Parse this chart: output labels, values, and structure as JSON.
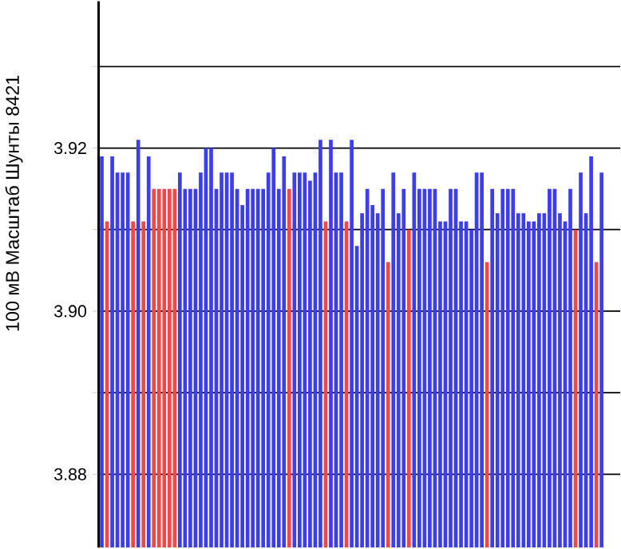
{
  "chart_data": {
    "type": "bar",
    "ylabel": "100 мВ Масштаб  Шунты 8421",
    "categories": [
      null,
      null,
      null,
      null,
      null,
      null,
      null,
      null,
      null,
      null,
      null,
      null,
      null,
      null,
      null,
      null,
      null,
      null,
      null,
      null,
      null,
      null,
      null,
      null,
      null,
      null,
      null,
      null,
      null,
      null,
      null,
      null,
      null,
      null,
      null,
      null,
      null,
      null,
      null,
      null,
      null,
      null,
      null,
      null,
      null,
      null,
      null,
      null,
      null,
      null,
      null,
      null,
      null,
      null,
      null,
      null,
      null,
      null,
      null,
      null,
      null,
      null,
      null,
      null,
      null,
      null,
      null,
      null,
      null,
      null,
      null,
      null,
      null,
      null,
      null,
      null,
      null,
      null,
      null,
      null,
      null,
      null,
      null,
      null,
      null,
      null,
      null,
      null,
      null,
      null,
      null,
      null,
      null,
      null,
      null,
      null,
      null
    ],
    "values": [
      3.919,
      3.911,
      3.919,
      3.917,
      3.917,
      3.917,
      3.911,
      3.921,
      3.911,
      3.919,
      3.915,
      3.915,
      3.915,
      3.915,
      3.915,
      3.917,
      3.915,
      3.915,
      3.915,
      3.917,
      3.92,
      3.92,
      3.915,
      3.917,
      3.917,
      3.917,
      3.915,
      3.913,
      3.915,
      3.915,
      3.915,
      3.915,
      3.917,
      3.92,
      3.915,
      3.919,
      3.915,
      3.917,
      3.917,
      3.917,
      3.916,
      3.917,
      3.921,
      3.911,
      3.921,
      3.917,
      3.917,
      3.911,
      3.921,
      3.908,
      3.912,
      3.915,
      3.913,
      3.912,
      3.915,
      3.906,
      3.917,
      3.912,
      3.915,
      3.91,
      3.917,
      3.915,
      3.915,
      3.915,
      3.915,
      3.911,
      3.911,
      3.915,
      3.915,
      3.911,
      3.911,
      3.91,
      3.917,
      3.917,
      3.906,
      3.915,
      3.912,
      3.915,
      3.915,
      3.915,
      3.912,
      3.912,
      3.911,
      3.911,
      3.912,
      3.912,
      3.915,
      3.915,
      3.912,
      3.911,
      3.915,
      3.91,
      3.917,
      3.912,
      3.919,
      3.906,
      3.917
    ],
    "colors": [
      "#3c3cf0",
      "#f04848",
      "#3c3cf0",
      "#3c3cf0",
      "#3c3cf0",
      "#3c3cf0",
      "#f04848",
      "#3c3cf0",
      "#f04848",
      "#3c3cf0",
      "#f04848",
      "#f04848",
      "#f04848",
      "#f04848",
      "#f04848",
      "#3c3cf0",
      "#3c3cf0",
      "#3c3cf0",
      "#3c3cf0",
      "#3c3cf0",
      "#3c3cf0",
      "#3c3cf0",
      "#3c3cf0",
      "#3c3cf0",
      "#3c3cf0",
      "#3c3cf0",
      "#3c3cf0",
      "#3c3cf0",
      "#3c3cf0",
      "#3c3cf0",
      "#3c3cf0",
      "#3c3cf0",
      "#3c3cf0",
      "#3c3cf0",
      "#3c3cf0",
      "#3c3cf0",
      "#f04848",
      "#3c3cf0",
      "#3c3cf0",
      "#3c3cf0",
      "#3c3cf0",
      "#3c3cf0",
      "#3c3cf0",
      "#f04848",
      "#3c3cf0",
      "#3c3cf0",
      "#3c3cf0",
      "#f04848",
      "#3c3cf0",
      "#3c3cf0",
      "#3c3cf0",
      "#3c3cf0",
      "#3c3cf0",
      "#3c3cf0",
      "#3c3cf0",
      "#f04848",
      "#3c3cf0",
      "#3c3cf0",
      "#3c3cf0",
      "#f04848",
      "#3c3cf0",
      "#3c3cf0",
      "#3c3cf0",
      "#3c3cf0",
      "#3c3cf0",
      "#3c3cf0",
      "#3c3cf0",
      "#3c3cf0",
      "#3c3cf0",
      "#3c3cf0",
      "#3c3cf0",
      "#3c3cf0",
      "#3c3cf0",
      "#3c3cf0",
      "#f04848",
      "#3c3cf0",
      "#3c3cf0",
      "#3c3cf0",
      "#3c3cf0",
      "#3c3cf0",
      "#3c3cf0",
      "#3c3cf0",
      "#3c3cf0",
      "#3c3cf0",
      "#3c3cf0",
      "#3c3cf0",
      "#3c3cf0",
      "#3c3cf0",
      "#3c3cf0",
      "#3c3cf0",
      "#3c3cf0",
      "#f04848",
      "#3c3cf0",
      "#3c3cf0",
      "#3c3cf0",
      "#f04848",
      "#3c3cf0"
    ],
    "ylim": [
      3.871,
      3.938
    ],
    "yticks": [
      {
        "value": 3.88,
        "label": "3.88"
      },
      {
        "value": 3.89,
        "label": null
      },
      {
        "value": 3.9,
        "label": "3.90"
      },
      {
        "value": 3.91,
        "label": null
      },
      {
        "value": 3.92,
        "label": "3.92"
      },
      {
        "value": 3.93,
        "label": null
      }
    ],
    "grid": "y",
    "tick_labels": "y"
  }
}
